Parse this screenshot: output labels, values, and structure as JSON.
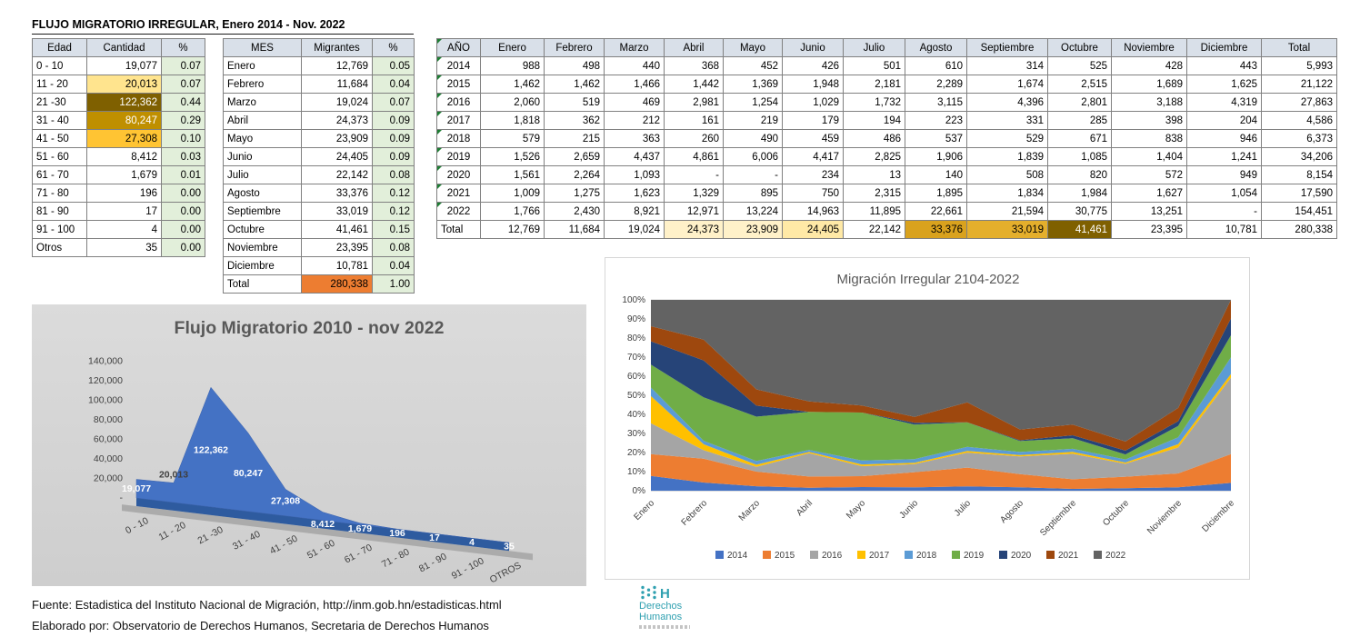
{
  "page_title": "FLUJO MIGRATORIO IRREGULAR, Enero 2014 - Nov. 2022",
  "tables": {
    "age": {
      "headers": [
        "Edad",
        "Cantidad",
        "%"
      ],
      "rows": [
        [
          "0 - 10",
          "19,077",
          "0.07"
        ],
        [
          "11 - 20",
          {
            "v": "20,013",
            "bg": "#FFE48E"
          },
          "0.07"
        ],
        [
          "21 -30",
          {
            "v": "122,362",
            "bg": "#7F6000",
            "fg": "#FFFFFF"
          },
          "0.44"
        ],
        [
          "31 - 40",
          {
            "v": "80,247",
            "bg": "#BF8F00",
            "fg": "#FFFFFF"
          },
          "0.29"
        ],
        [
          "41 - 50",
          {
            "v": "27,308",
            "bg": "#FFC433"
          },
          "0.10"
        ],
        [
          "51 - 60",
          "8,412",
          "0.03"
        ],
        [
          "61 - 70",
          "1,679",
          "0.01"
        ],
        [
          "71 - 80",
          "196",
          "0.00"
        ],
        [
          "81 - 90",
          "17",
          "0.00"
        ],
        [
          "91 - 100",
          "4",
          "0.00"
        ],
        [
          "Otros",
          "35",
          "0.00"
        ]
      ]
    },
    "month": {
      "headers": [
        "MES",
        "Migrantes",
        "%"
      ],
      "rows": [
        [
          "Enero",
          "12,769",
          "0.05"
        ],
        [
          "Febrero",
          "11,684",
          "0.04"
        ],
        [
          "Marzo",
          "19,024",
          "0.07"
        ],
        [
          "Abril",
          "24,373",
          "0.09"
        ],
        [
          "Mayo",
          "23,909",
          "0.09"
        ],
        [
          "Junio",
          "24,405",
          "0.09"
        ],
        [
          "Julio",
          "22,142",
          "0.08"
        ],
        [
          "Agosto",
          "33,376",
          "0.12"
        ],
        [
          "Septiembre",
          "33,019",
          "0.12"
        ],
        [
          "Octubre",
          "41,461",
          "0.15"
        ],
        [
          "Noviembre",
          "23,395",
          "0.08"
        ],
        [
          "Diciembre",
          "10,781",
          "0.04"
        ],
        [
          "Total",
          {
            "v": "280,338",
            "bg": "#ED7D31"
          },
          "1.00"
        ]
      ]
    },
    "year": {
      "headers": [
        "AÑO",
        "Enero",
        "Febrero",
        "Marzo",
        "Abril",
        "Mayo",
        "Junio",
        "Julio",
        "Agosto",
        "Septiembre",
        "Octubre",
        "Noviembre",
        "Diciembre",
        "Total"
      ],
      "rows": [
        {
          "year": "2014",
          "values": [
            "988",
            "498",
            "440",
            "368",
            "452",
            "426",
            "501",
            "610",
            "314",
            "525",
            "428",
            "443"
          ],
          "total": "5,993"
        },
        {
          "year": "2015",
          "values": [
            "1,462",
            "1,462",
            "1,466",
            "1,442",
            "1,369",
            "1,948",
            "2,181",
            "2,289",
            "1,674",
            "2,515",
            "1,689",
            "1,625"
          ],
          "total": "21,122"
        },
        {
          "year": "2016",
          "values": [
            "2,060",
            "519",
            "469",
            "2,981",
            "1,254",
            "1,029",
            "1,732",
            "3,115",
            "4,396",
            "2,801",
            "3,188",
            "4,319"
          ],
          "total": "27,863"
        },
        {
          "year": "2017",
          "values": [
            "1,818",
            "362",
            "212",
            "161",
            "219",
            "179",
            "194",
            "223",
            "331",
            "285",
            "398",
            "204"
          ],
          "total": "4,586"
        },
        {
          "year": "2018",
          "values": [
            "579",
            "215",
            "363",
            "260",
            "490",
            "459",
            "486",
            "537",
            "529",
            "671",
            "838",
            "946"
          ],
          "total": "6,373"
        },
        {
          "year": "2019",
          "values": [
            "1,526",
            "2,659",
            "4,437",
            "4,861",
            "6,006",
            "4,417",
            "2,825",
            "1,906",
            "1,839",
            "1,085",
            "1,404",
            "1,241"
          ],
          "total": "34,206"
        },
        {
          "year": "2020",
          "values": [
            "1,561",
            "2,264",
            "1,093",
            "-",
            "-",
            "234",
            "13",
            "140",
            "508",
            "820",
            "572",
            "949"
          ],
          "total": "8,154"
        },
        {
          "year": "2021",
          "values": [
            "1,009",
            "1,275",
            "1,623",
            "1,329",
            "895",
            "750",
            "2,315",
            "1,895",
            "1,834",
            "1,984",
            "1,627",
            "1,054"
          ],
          "total": "17,590"
        },
        {
          "year": "2022",
          "values": [
            "1,766",
            "2,430",
            "8,921",
            "12,971",
            "13,224",
            "14,963",
            "11,895",
            "22,661",
            "21,594",
            "30,775",
            "13,251",
            "-"
          ],
          "total": "154,451"
        }
      ],
      "total_row": {
        "label": "Total",
        "values": [
          "12,769",
          "11,684",
          "19,024",
          {
            "v": "24,373",
            "bg": "#FFF1C9"
          },
          {
            "v": "23,909",
            "bg": "#FFF1C9"
          },
          {
            "v": "24,405",
            "bg": "#FFE9A6"
          },
          "22,142",
          {
            "v": "33,376",
            "bg": "#D9A21E"
          },
          {
            "v": "33,019",
            "bg": "#E4AF2C"
          },
          {
            "v": "41,461",
            "bg": "#7F6000",
            "fg": "#FFFFFF"
          },
          "23,395",
          "10,781"
        ],
        "total": "280,338"
      }
    }
  },
  "chart_data": [
    {
      "type": "area",
      "title": "Flujo Migratorio 2010 - nov 2022",
      "categories": [
        "0 - 10",
        "11 - 20",
        "21 -30",
        "31 - 40",
        "41 - 50",
        "51 - 60",
        "61 - 70",
        "71 - 80",
        "81 - 90",
        "91 - 100",
        "OTROS"
      ],
      "values": [
        19077,
        20013,
        122362,
        80247,
        27308,
        8412,
        1679,
        196,
        17,
        4,
        35
      ],
      "labels": [
        "19,077",
        "20,013",
        "122,362",
        "80,247",
        "27,308",
        "8,412",
        "1,679",
        "196",
        "17",
        "4",
        "35"
      ],
      "ylim": [
        0,
        140000
      ],
      "ytick_labels": [
        "-",
        "20,000",
        "40,000",
        "60,000",
        "80,000",
        "100,000",
        "120,000",
        "140,000"
      ],
      "xlabel": "",
      "ylabel": "",
      "grid": false,
      "legend_position": "none",
      "area_color": "#4472C4",
      "edge_color": "#2E5B9F",
      "bg_color": "#D6D6D6"
    },
    {
      "type": "area",
      "stacked_percent": true,
      "title": "Migración Irregular 2104-2022",
      "categories": [
        "Enero",
        "Febrero",
        "Marzo",
        "Abril",
        "Mayo",
        "Junio",
        "Julio",
        "Agosto",
        "Septiembre",
        "Octubre",
        "Noviembre",
        "Diciembre"
      ],
      "series": [
        {
          "name": "2014",
          "color": "#4472C4",
          "values": [
            988,
            498,
            440,
            368,
            452,
            426,
            501,
            610,
            314,
            525,
            428,
            443
          ]
        },
        {
          "name": "2015",
          "color": "#ED7D31",
          "values": [
            1462,
            1462,
            1466,
            1442,
            1369,
            1948,
            2181,
            2289,
            1674,
            2515,
            1689,
            1625
          ]
        },
        {
          "name": "2016",
          "color": "#A5A5A5",
          "values": [
            2060,
            519,
            469,
            2981,
            1254,
            1029,
            1732,
            3115,
            4396,
            2801,
            3188,
            4319
          ]
        },
        {
          "name": "2017",
          "color": "#FFC000",
          "values": [
            1818,
            362,
            212,
            161,
            219,
            179,
            194,
            223,
            331,
            285,
            398,
            204
          ]
        },
        {
          "name": "2018",
          "color": "#5B9BD5",
          "values": [
            579,
            215,
            363,
            260,
            490,
            459,
            486,
            537,
            529,
            671,
            838,
            946
          ]
        },
        {
          "name": "2019",
          "color": "#70AD47",
          "values": [
            1526,
            2659,
            4437,
            4861,
            6006,
            4417,
            2825,
            1906,
            1839,
            1085,
            1404,
            1241
          ]
        },
        {
          "name": "2020",
          "color": "#264478",
          "values": [
            1561,
            2264,
            1093,
            0,
            0,
            234,
            13,
            140,
            508,
            820,
            572,
            949
          ]
        },
        {
          "name": "2021",
          "color": "#9E480E",
          "values": [
            1009,
            1275,
            1623,
            1329,
            895,
            750,
            2315,
            1895,
            1834,
            1984,
            1627,
            1054
          ]
        },
        {
          "name": "2022",
          "color": "#636363",
          "values": [
            1766,
            2430,
            8921,
            12971,
            13224,
            14963,
            11895,
            22661,
            21594,
            30775,
            13251,
            0
          ]
        }
      ],
      "ylim": [
        0,
        1
      ],
      "ytick_labels": [
        "0%",
        "10%",
        "20%",
        "30%",
        "40%",
        "50%",
        "60%",
        "70%",
        "80%",
        "90%",
        "100%"
      ],
      "grid": true,
      "legend_position": "bottom"
    }
  ],
  "footer": {
    "source": "Fuente: Estadistica del Instituto Nacional de Migración, http://inm.gob.hn/estadisticas.html",
    "credit": "Elaborado por: Observatorio de Derechos Humanos, Secretaria de Derechos Humanos"
  },
  "logo": {
    "mark": "H",
    "line1": "Derechos",
    "line2": "Humanos",
    "accent_color": "#2FA0B0"
  }
}
